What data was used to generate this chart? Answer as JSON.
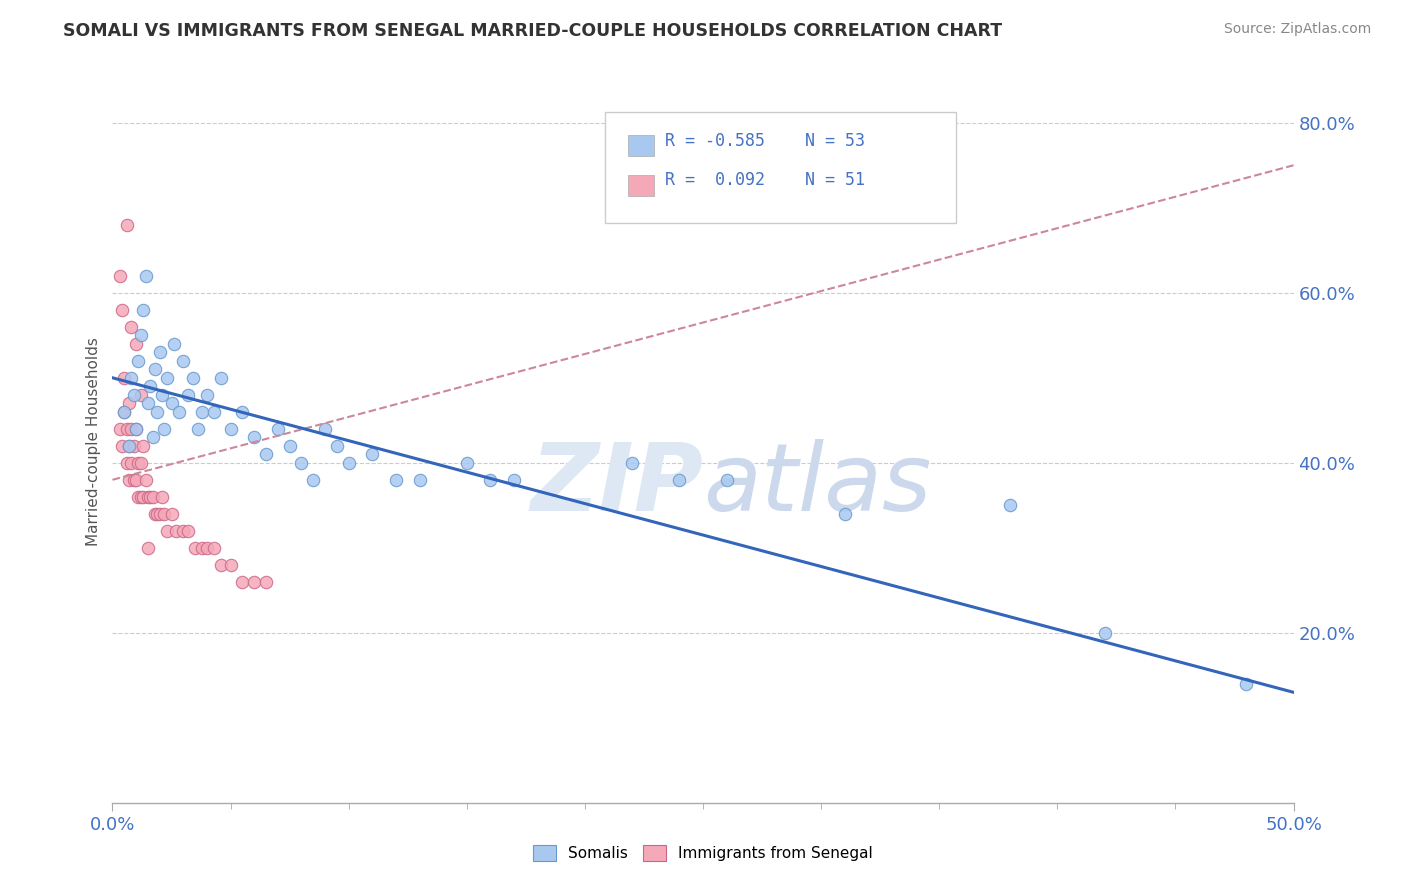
{
  "title": "SOMALI VS IMMIGRANTS FROM SENEGAL MARRIED-COUPLE HOUSEHOLDS CORRELATION CHART",
  "source": "Source: ZipAtlas.com",
  "ylabel": "Married-couple Households",
  "ylabel_right_ticks": [
    "20.0%",
    "40.0%",
    "60.0%",
    "80.0%"
  ],
  "ylabel_right_vals": [
    0.2,
    0.4,
    0.6,
    0.8
  ],
  "legend_r1": "R = -0.585",
  "legend_n1": "N = 53",
  "legend_r2": "R =  0.092",
  "legend_n2": "N = 51",
  "somali_color": "#a8c8f0",
  "somali_edge_color": "#6699cc",
  "senegal_color": "#f4a8b8",
  "senegal_edge_color": "#cc6688",
  "somali_line_color": "#3366bb",
  "senegal_line_color": "#cc8899",
  "xlim": [
    0.0,
    0.5
  ],
  "ylim": [
    0.0,
    0.85
  ],
  "somali_scatter_x": [
    0.005,
    0.007,
    0.008,
    0.009,
    0.01,
    0.011,
    0.012,
    0.013,
    0.014,
    0.015,
    0.016,
    0.017,
    0.018,
    0.019,
    0.02,
    0.021,
    0.022,
    0.023,
    0.025,
    0.026,
    0.028,
    0.03,
    0.032,
    0.034,
    0.036,
    0.038,
    0.04,
    0.043,
    0.046,
    0.05,
    0.055,
    0.06,
    0.065,
    0.07,
    0.075,
    0.08,
    0.085,
    0.09,
    0.095,
    0.1,
    0.11,
    0.12,
    0.13,
    0.15,
    0.16,
    0.17,
    0.22,
    0.24,
    0.26,
    0.31,
    0.38,
    0.42,
    0.48
  ],
  "somali_scatter_y": [
    0.46,
    0.42,
    0.5,
    0.48,
    0.44,
    0.52,
    0.55,
    0.58,
    0.62,
    0.47,
    0.49,
    0.43,
    0.51,
    0.46,
    0.53,
    0.48,
    0.44,
    0.5,
    0.47,
    0.54,
    0.46,
    0.52,
    0.48,
    0.5,
    0.44,
    0.46,
    0.48,
    0.46,
    0.5,
    0.44,
    0.46,
    0.43,
    0.41,
    0.44,
    0.42,
    0.4,
    0.38,
    0.44,
    0.42,
    0.4,
    0.41,
    0.38,
    0.38,
    0.4,
    0.38,
    0.38,
    0.4,
    0.38,
    0.38,
    0.34,
    0.35,
    0.2,
    0.14
  ],
  "senegal_scatter_x": [
    0.003,
    0.004,
    0.005,
    0.005,
    0.006,
    0.006,
    0.007,
    0.007,
    0.007,
    0.008,
    0.008,
    0.009,
    0.009,
    0.01,
    0.01,
    0.011,
    0.011,
    0.012,
    0.012,
    0.013,
    0.013,
    0.014,
    0.015,
    0.016,
    0.017,
    0.018,
    0.019,
    0.02,
    0.021,
    0.022,
    0.023,
    0.025,
    0.027,
    0.03,
    0.032,
    0.035,
    0.038,
    0.04,
    0.043,
    0.046,
    0.05,
    0.055,
    0.06,
    0.065,
    0.003,
    0.004,
    0.006,
    0.008,
    0.01,
    0.012,
    0.015
  ],
  "senegal_scatter_y": [
    0.44,
    0.42,
    0.46,
    0.5,
    0.4,
    0.44,
    0.38,
    0.42,
    0.47,
    0.4,
    0.44,
    0.38,
    0.42,
    0.38,
    0.44,
    0.36,
    0.4,
    0.36,
    0.4,
    0.36,
    0.42,
    0.38,
    0.36,
    0.36,
    0.36,
    0.34,
    0.34,
    0.34,
    0.36,
    0.34,
    0.32,
    0.34,
    0.32,
    0.32,
    0.32,
    0.3,
    0.3,
    0.3,
    0.3,
    0.28,
    0.28,
    0.26,
    0.26,
    0.26,
    0.62,
    0.58,
    0.68,
    0.56,
    0.54,
    0.48,
    0.3
  ]
}
